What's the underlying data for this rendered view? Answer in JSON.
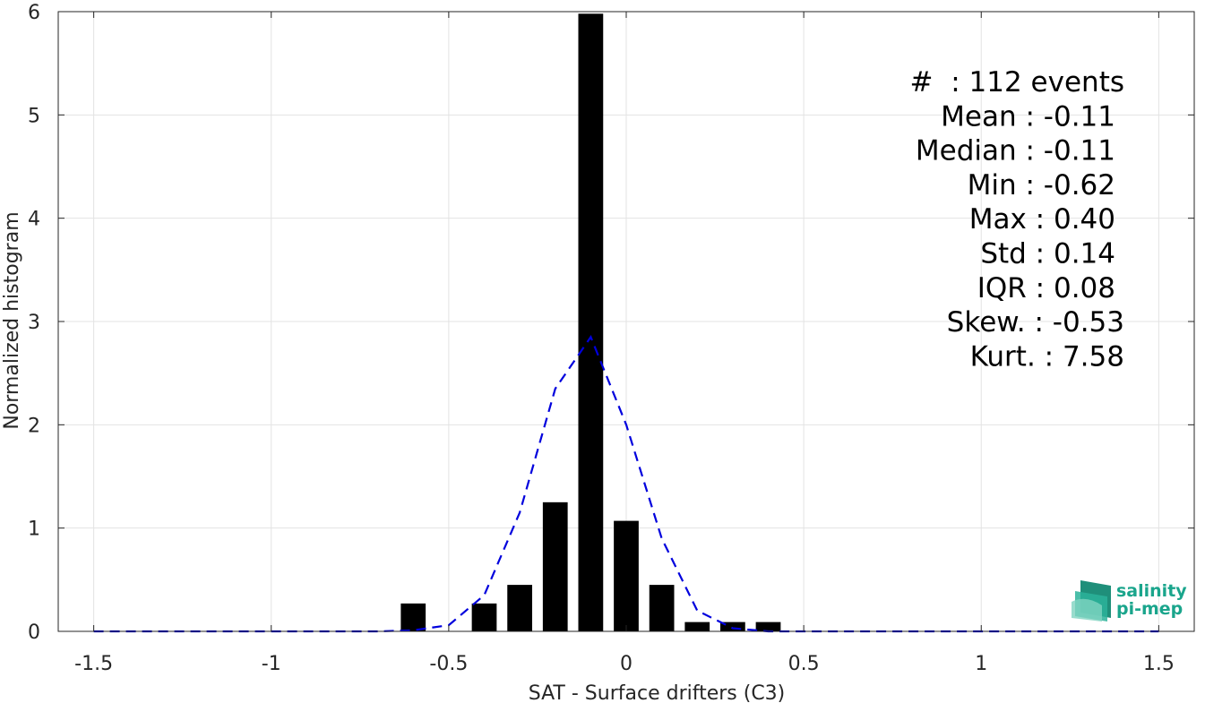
{
  "chart_data": {
    "type": "bar",
    "xlabel": "SAT - Surface drifters (C3)",
    "ylabel": "Normalized histogram",
    "xlim": [
      -1.6,
      1.6
    ],
    "ylim": [
      0,
      6
    ],
    "xticks": [
      -1.5,
      -1,
      -0.5,
      0,
      0.5,
      1,
      1.5
    ],
    "xtick_labels": [
      "-1.5",
      "-1",
      "-0.5",
      "0",
      "0.5",
      "1",
      "1.5"
    ],
    "yticks": [
      0,
      1,
      2,
      3,
      4,
      5,
      6
    ],
    "ytick_labels": [
      "0",
      "1",
      "2",
      "3",
      "4",
      "5",
      "6"
    ],
    "grid": true,
    "bar_width": 0.07,
    "bars": {
      "x": [
        -0.6,
        -0.4,
        -0.3,
        -0.2,
        -0.1,
        0.0,
        0.1,
        0.2,
        0.3,
        0.4
      ],
      "values": [
        0.27,
        0.27,
        0.45,
        1.25,
        5.98,
        1.07,
        0.45,
        0.09,
        0.09,
        0.09
      ],
      "color": "#000000"
    },
    "fit_curve": {
      "style": "dashed",
      "color": "#0000dd",
      "x": [
        -1.5,
        -1.4,
        -1.3,
        -1.2,
        -1.1,
        -1.0,
        -0.9,
        -0.8,
        -0.7,
        -0.6,
        -0.5,
        -0.4,
        -0.3,
        -0.2,
        -0.1,
        0.0,
        0.1,
        0.2,
        0.3,
        0.4,
        0.5,
        0.6,
        0.7,
        0.8,
        0.9,
        1.0,
        1.1,
        1.2,
        1.3,
        1.4,
        1.5
      ],
      "y": [
        0,
        0,
        0,
        0,
        0,
        0,
        0,
        0,
        0,
        0.01,
        0.06,
        0.35,
        1.15,
        2.35,
        2.85,
        2.0,
        0.9,
        0.2,
        0.03,
        0,
        0,
        0,
        0,
        0,
        0,
        0,
        0,
        0,
        0,
        0,
        0
      ]
    },
    "annotations": [
      "#  : 112 events",
      "Mean : -0.11",
      "Median : -0.11",
      "Min : -0.62",
      "Max : 0.40",
      "Std : 0.14",
      "IQR : 0.08",
      "Skew. : -0.53",
      "Kurt. : 7.58"
    ]
  },
  "logo": {
    "line1": "salinity",
    "line2": "pi-mep",
    "color": "#1aa58c"
  }
}
